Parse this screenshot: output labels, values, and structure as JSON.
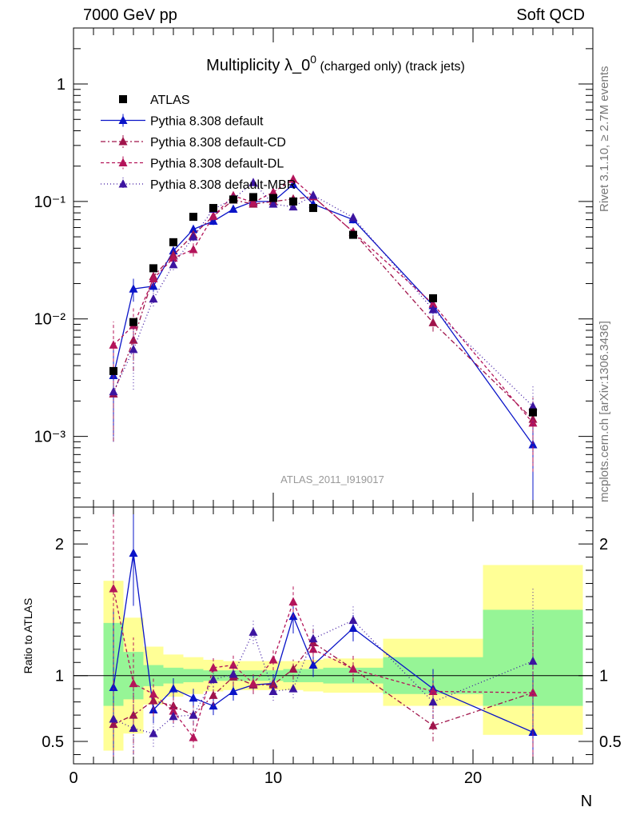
{
  "header": {
    "left": "7000 GeV pp",
    "right": "Soft QCD"
  },
  "side_labels": {
    "rivet": "Rivet 3.1.10, ≥ 2.7M events",
    "mcplots": "mcplots.cern.ch [arXiv:1306.3436]"
  },
  "colors": {
    "atlas": "#000000",
    "default": "#0a14c8",
    "cd": "#a0144b",
    "dl": "#b4145a",
    "mbr": "#3c14a0",
    "band_yellow": "#ffff96",
    "band_green": "#96f596"
  },
  "chart_data": [
    {
      "type": "scatter",
      "title_main": "Multiplicity λ_0",
      "title_sup": "0",
      "title_suffix": " (charged only) (track jets)",
      "watermark": "ATLAS_2011_I919017",
      "xlabel": "N",
      "ylabel": "",
      "yscale": "log",
      "xlim": [
        0,
        26
      ],
      "ylim": [
        0.00025,
        3.0
      ],
      "ytick_labels": [
        "10⁻³",
        "10⁻²",
        "10⁻¹",
        "1"
      ],
      "legend_position": "top-left",
      "atlas": {
        "name": "ATLAS",
        "x": [
          2,
          3,
          4,
          5,
          6,
          7,
          8,
          9,
          10,
          11,
          12,
          14,
          18,
          23
        ],
        "y": [
          0.0036,
          0.0094,
          0.027,
          0.045,
          0.074,
          0.088,
          0.104,
          0.109,
          0.107,
          0.1,
          0.088,
          0.052,
          0.015,
          0.0016
        ]
      },
      "series": [
        {
          "name": "Pythia 8.308 default",
          "color_key": "default",
          "dash": "",
          "x": [
            2,
            3,
            4,
            5,
            6,
            7,
            8,
            9,
            10,
            11,
            12,
            14,
            18,
            23
          ],
          "y": [
            0.0033,
            0.018,
            0.019,
            0.038,
            0.058,
            0.068,
            0.086,
            0.1,
            0.1,
            0.14,
            0.095,
            0.07,
            0.013,
            0.00085
          ],
          "yerr": [
            0.0023,
            0.004,
            0.002,
            0.003,
            0.005,
            0.005,
            0.006,
            0.007,
            0.007,
            0.012,
            0.008,
            0.005,
            0.002,
            0.0006
          ]
        },
        {
          "name": "Pythia 8.308 default-CD",
          "color_key": "cd",
          "dash": "6,3,2,3",
          "x": [
            2,
            3,
            4,
            5,
            6,
            7,
            8,
            9,
            10,
            11,
            12,
            14,
            18,
            23
          ],
          "y": [
            0.0023,
            0.0066,
            0.023,
            0.035,
            0.052,
            0.075,
            0.103,
            0.095,
            0.1,
            0.105,
            0.11,
            0.055,
            0.0093,
            0.0014
          ],
          "yerr": [
            0.0014,
            0.003,
            0.003,
            0.004,
            0.005,
            0.006,
            0.007,
            0.006,
            0.007,
            0.008,
            0.008,
            0.005,
            0.0015,
            0.0008
          ]
        },
        {
          "name": "Pythia 8.308 default-DL",
          "color_key": "dl",
          "dash": "4,3",
          "x": [
            2,
            3,
            4,
            5,
            6,
            7,
            8,
            9,
            10,
            11,
            12,
            14,
            18,
            23
          ],
          "y": [
            0.006,
            0.0088,
            0.022,
            0.033,
            0.039,
            0.075,
            0.112,
            0.098,
            0.12,
            0.155,
            0.11,
            0.055,
            0.0134,
            0.0013
          ],
          "yerr": [
            0.0035,
            0.004,
            0.003,
            0.004,
            0.005,
            0.006,
            0.008,
            0.007,
            0.009,
            0.012,
            0.008,
            0.005,
            0.002,
            0.0008
          ]
        },
        {
          "name": "Pythia 8.308 default-MBR",
          "color_key": "mbr",
          "dash": "1,3",
          "x": [
            2,
            3,
            4,
            5,
            6,
            7,
            8,
            9,
            10,
            11,
            12,
            14,
            18,
            23
          ],
          "y": [
            0.0024,
            0.0055,
            0.0148,
            0.029,
            0.05,
            0.086,
            0.105,
            0.145,
            0.095,
            0.09,
            0.113,
            0.073,
            0.012,
            0.0018
          ],
          "yerr": [
            0.0015,
            0.003,
            0.002,
            0.003,
            0.004,
            0.006,
            0.007,
            0.009,
            0.006,
            0.006,
            0.008,
            0.005,
            0.002,
            0.0009
          ]
        }
      ]
    },
    {
      "type": "scatter",
      "title": "",
      "xlabel": "N",
      "ylabel": "Ratio to ATLAS",
      "xlim": [
        0,
        26
      ],
      "ylim": [
        0.33,
        2.28
      ],
      "xtick_labels": [
        "0",
        "10",
        "20"
      ],
      "ytick_labels": [
        "0.5",
        "1",
        "2"
      ],
      "bands": [
        {
          "x0": 1.5,
          "x1": 2.5,
          "yellow": [
            0.43,
            1.72
          ],
          "green": [
            0.77,
            1.4
          ]
        },
        {
          "x0": 2.5,
          "x1": 3.5,
          "yellow": [
            0.56,
            1.44
          ],
          "green": [
            0.82,
            1.18
          ]
        },
        {
          "x0": 3.5,
          "x1": 4.5,
          "yellow": [
            0.78,
            1.22
          ],
          "green": [
            0.92,
            1.08
          ]
        },
        {
          "x0": 4.5,
          "x1": 5.5,
          "yellow": [
            0.84,
            1.16
          ],
          "green": [
            0.94,
            1.06
          ]
        },
        {
          "x0": 5.5,
          "x1": 6.5,
          "yellow": [
            0.86,
            1.14
          ],
          "green": [
            0.95,
            1.05
          ]
        },
        {
          "x0": 6.5,
          "x1": 7.5,
          "yellow": [
            0.88,
            1.12
          ],
          "green": [
            0.96,
            1.04
          ]
        },
        {
          "x0": 7.5,
          "x1": 8.5,
          "yellow": [
            0.89,
            1.11
          ],
          "green": [
            0.96,
            1.04
          ]
        },
        {
          "x0": 8.5,
          "x1": 9.5,
          "yellow": [
            0.89,
            1.11
          ],
          "green": [
            0.96,
            1.04
          ]
        },
        {
          "x0": 9.5,
          "x1": 10.5,
          "yellow": [
            0.89,
            1.11
          ],
          "green": [
            0.96,
            1.04
          ]
        },
        {
          "x0": 10.5,
          "x1": 11.5,
          "yellow": [
            0.89,
            1.11
          ],
          "green": [
            0.95,
            1.05
          ]
        },
        {
          "x0": 11.5,
          "x1": 12.5,
          "yellow": [
            0.88,
            1.12
          ],
          "green": [
            0.95,
            1.05
          ]
        },
        {
          "x0": 12.5,
          "x1": 15.5,
          "yellow": [
            0.87,
            1.13
          ],
          "green": [
            0.94,
            1.06
          ]
        },
        {
          "x0": 15.5,
          "x1": 20.5,
          "yellow": [
            0.77,
            1.28
          ],
          "green": [
            0.86,
            1.14
          ]
        },
        {
          "x0": 20.5,
          "x1": 25.5,
          "yellow": [
            0.55,
            1.84
          ],
          "green": [
            0.77,
            1.5
          ]
        }
      ],
      "series": [
        {
          "name": "Pythia 8.308 default",
          "color_key": "default",
          "dash": "",
          "x": [
            2,
            3,
            4,
            5,
            6,
            7,
            8,
            9,
            10,
            11,
            12,
            14,
            18,
            23
          ],
          "y": [
            0.91,
            1.93,
            0.74,
            0.9,
            0.83,
            0.77,
            0.88,
            0.93,
            0.94,
            1.45,
            1.08,
            1.36,
            0.9,
            0.57
          ],
          "yerr": [
            0.6,
            0.4,
            0.1,
            0.08,
            0.07,
            0.07,
            0.07,
            0.07,
            0.07,
            0.13,
            0.09,
            0.1,
            0.15,
            0.45
          ]
        },
        {
          "name": "Pythia 8.308 default-CD",
          "color_key": "cd",
          "dash": "6,3,2,3",
          "x": [
            2,
            3,
            4,
            5,
            6,
            7,
            8,
            9,
            10,
            11,
            12,
            14,
            18,
            23
          ],
          "y": [
            0.63,
            0.7,
            0.81,
            0.77,
            0.7,
            0.85,
            0.99,
            0.93,
            0.93,
            1.05,
            1.25,
            1.05,
            0.62,
            0.87
          ],
          "yerr": [
            0.4,
            0.3,
            0.12,
            0.09,
            0.08,
            0.08,
            0.07,
            0.07,
            0.07,
            0.08,
            0.1,
            0.1,
            0.12,
            0.5
          ]
        },
        {
          "name": "Pythia 8.308 default-DL",
          "color_key": "dl",
          "dash": "4,3",
          "x": [
            2,
            3,
            4,
            5,
            6,
            7,
            8,
            9,
            10,
            11,
            12,
            14,
            18,
            23
          ],
          "y": [
            1.66,
            0.94,
            0.86,
            0.73,
            0.53,
            1.06,
            1.08,
            0.94,
            1.12,
            1.56,
            1.2,
            1.05,
            0.88,
            0.87
          ],
          "yerr": [
            0.6,
            0.35,
            0.12,
            0.09,
            0.08,
            0.08,
            0.08,
            0.07,
            0.08,
            0.12,
            0.1,
            0.1,
            0.13,
            0.5
          ]
        },
        {
          "name": "Pythia 8.308 default-MBR",
          "color_key": "mbr",
          "dash": "1,3",
          "x": [
            2,
            3,
            4,
            5,
            6,
            7,
            8,
            9,
            10,
            11,
            12,
            14,
            18,
            23
          ],
          "y": [
            0.67,
            0.6,
            0.56,
            0.69,
            0.7,
            0.97,
            1.01,
            1.33,
            0.88,
            0.9,
            1.28,
            1.42,
            0.8,
            1.11
          ],
          "yerr": [
            0.45,
            0.3,
            0.1,
            0.08,
            0.07,
            0.08,
            0.07,
            0.09,
            0.07,
            0.07,
            0.1,
            0.12,
            0.13,
            0.55
          ]
        }
      ]
    }
  ]
}
